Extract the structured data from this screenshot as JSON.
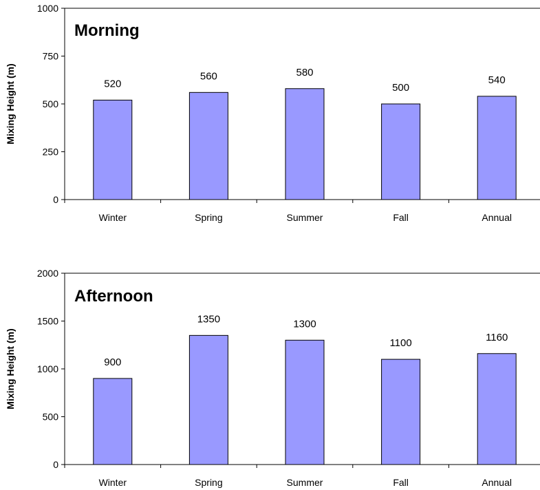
{
  "chart_data": [
    {
      "type": "bar",
      "title": "Morning",
      "ylabel": "Mixing Height (m)",
      "categories": [
        "Winter",
        "Spring",
        "Summer",
        "Fall",
        "Annual"
      ],
      "values": [
        520,
        560,
        580,
        500,
        540
      ],
      "ylim": [
        0,
        1000
      ],
      "yticks": [
        0,
        250,
        500,
        750,
        1000
      ],
      "grid": false,
      "bar_color": "#9999ff",
      "data_labels": [
        "520",
        "560",
        "580",
        "500",
        "540"
      ]
    },
    {
      "type": "bar",
      "title": "Afternoon",
      "ylabel": "Mixing Height (m)",
      "categories": [
        "Winter",
        "Spring",
        "Summer",
        "Fall",
        "Annual"
      ],
      "values": [
        900,
        1350,
        1300,
        1100,
        1160
      ],
      "ylim": [
        0,
        2000
      ],
      "yticks": [
        0,
        500,
        1000,
        1500,
        2000
      ],
      "grid": false,
      "bar_color": "#9999ff",
      "data_labels": [
        "900",
        "1350",
        "1300",
        "1100",
        "1160"
      ]
    }
  ]
}
